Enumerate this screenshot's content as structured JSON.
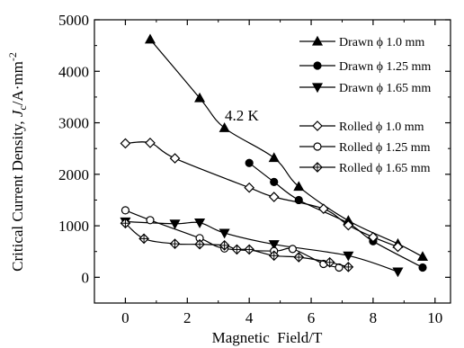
{
  "chart_data": {
    "type": "line",
    "xlabel": "Magnetic  Field/T",
    "ylabel_main": "Critical Current Density, ",
    "ylabel_var": "J",
    "ylabel_sub": "c",
    "ylabel_unit": "/A·mm",
    "ylabel_sup": "-2",
    "xlim": [
      -1,
      10.5
    ],
    "ylim": [
      -500,
      5000
    ],
    "xticks": [
      0,
      2,
      4,
      6,
      8,
      10
    ],
    "yticks": [
      0,
      1000,
      2000,
      3000,
      4000,
      5000
    ],
    "annotation": "4.2 K",
    "legend_position": "top-right",
    "series": [
      {
        "name": "Drawn ϕ 1.0 mm",
        "marker": "triangle-up",
        "filled": true,
        "x": [
          0.8,
          2.4,
          3.2,
          4.8,
          5.6,
          7.2,
          8.8,
          9.6
        ],
        "y": [
          4620,
          3480,
          2900,
          2320,
          1760,
          1100,
          650,
          400
        ]
      },
      {
        "name": "Drawn ϕ 1.25 mm",
        "marker": "circle",
        "filled": true,
        "x": [
          4.0,
          4.8,
          5.6,
          7.2,
          8.0,
          9.6
        ],
        "y": [
          2220,
          1850,
          1500,
          1050,
          700,
          190
        ]
      },
      {
        "name": "Drawn ϕ 1.65 mm",
        "marker": "triangle-down",
        "filled": true,
        "x": [
          0.0,
          1.6,
          2.4,
          3.2,
          4.8,
          7.2,
          8.8
        ],
        "y": [
          1080,
          1040,
          1060,
          860,
          640,
          420,
          110
        ]
      },
      {
        "name": "Rolled ϕ 1.0 mm",
        "marker": "diamond",
        "filled": false,
        "x": [
          0.0,
          0.8,
          1.6,
          4.0,
          4.8,
          6.4,
          7.2,
          8.0,
          8.8
        ],
        "y": [
          2600,
          2610,
          2310,
          1740,
          1560,
          1330,
          1010,
          780,
          590
        ]
      },
      {
        "name": "Rolled ϕ 1.25 mm",
        "marker": "circle",
        "filled": false,
        "x": [
          0.0,
          0.8,
          2.4,
          3.2,
          4.8,
          5.4,
          6.4,
          6.9
        ],
        "y": [
          1300,
          1110,
          760,
          560,
          510,
          550,
          260,
          190
        ]
      },
      {
        "name": "Rolled ϕ 1.65 mm",
        "marker": "crossed-diamond",
        "filled": false,
        "x": [
          0.0,
          0.6,
          1.6,
          2.4,
          3.2,
          3.6,
          4.0,
          4.8,
          5.6,
          6.6,
          7.2
        ],
        "y": [
          1050,
          750,
          650,
          640,
          620,
          540,
          540,
          420,
          390,
          290,
          200
        ]
      }
    ]
  }
}
